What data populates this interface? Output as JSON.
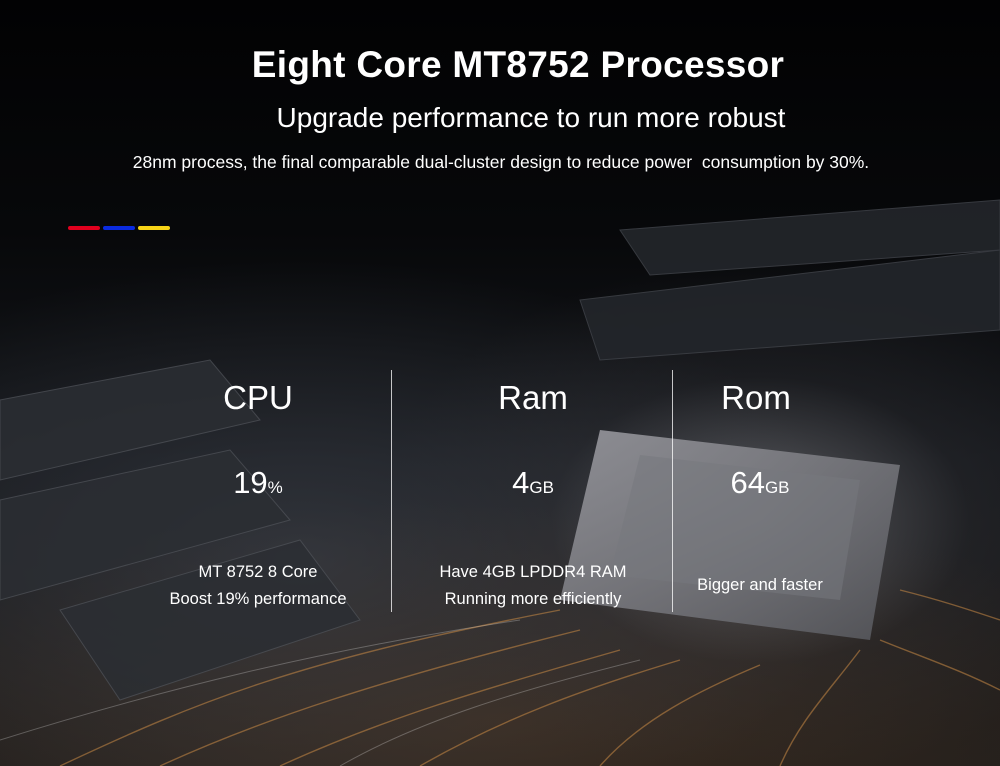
{
  "header": {
    "title": "Eight Core MT8752 Processor",
    "subtitle": "Upgrade performance to run more robust",
    "description": "28nm process, the final comparable dual-cluster design to reduce power  consumption by 30%."
  },
  "accent_colors": [
    "#e1001e",
    "#0a2be0",
    "#f7d417"
  ],
  "specs": [
    {
      "label": "CPU",
      "value": "19",
      "unit": "%",
      "lines": [
        "MT 8752 8 Core",
        "Boost 19% performance"
      ]
    },
    {
      "label": "Ram",
      "value": "4",
      "unit": "GB",
      "lines": [
        "Have 4GB LPDDR4 RAM",
        "Running more efficiently"
      ]
    },
    {
      "label": "Rom",
      "value": "64",
      "unit": "GB",
      "lines": [
        "Bigger and faster"
      ]
    }
  ]
}
